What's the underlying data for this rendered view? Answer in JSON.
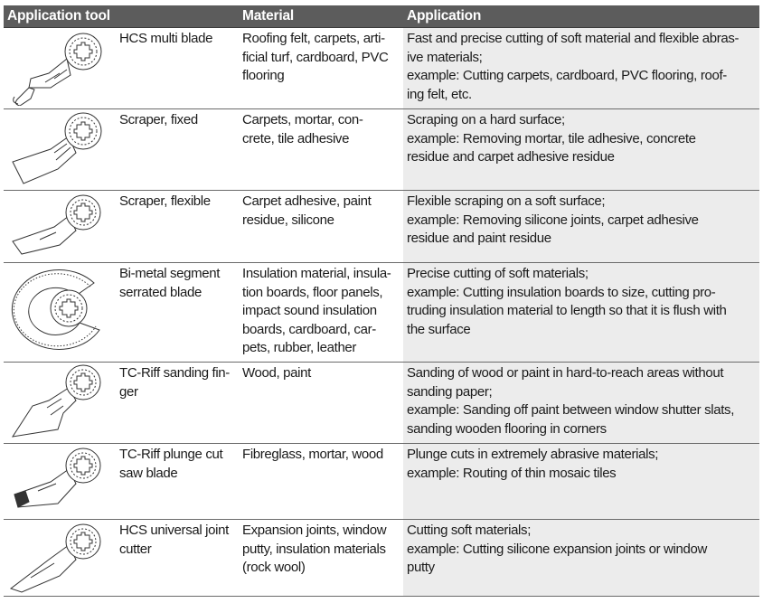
{
  "header": {
    "col_tool": "Application tool",
    "col_material": "Material",
    "col_application": "Application"
  },
  "rows": [
    {
      "tool_lines": [
        "HCS multi blade"
      ],
      "tool_icon": "hcs-multi-blade-icon",
      "material_lines": [
        "Roofing felt, carpets, arti-",
        "ficial turf, cardboard, PVC",
        "flooring"
      ],
      "application_lines": [
        "Fast and precise cutting of soft material and flexible abras-",
        "ive materials;",
        "example: Cutting carpets, cardboard, PVC flooring, roof-",
        "ing felt, etc."
      ]
    },
    {
      "tool_lines": [
        "Scraper, fixed"
      ],
      "tool_icon": "scraper-fixed-icon",
      "material_lines": [
        "Carpets, mortar, con-",
        "crete, tile adhesive"
      ],
      "application_lines": [
        "Scraping on a hard surface;",
        "example: Removing mortar, tile adhesive, concrete",
        "residue and carpet adhesive residue"
      ]
    },
    {
      "tool_lines": [
        "Scraper, flexible"
      ],
      "tool_icon": "scraper-flexible-icon",
      "material_lines": [
        "Carpet adhesive, paint",
        "residue, silicone"
      ],
      "application_lines": [
        "Flexible scraping on a soft surface;",
        "example: Removing silicone joints, carpet adhesive",
        "residue and paint residue"
      ]
    },
    {
      "tool_lines": [
        "Bi-metal segment",
        "serrated blade"
      ],
      "tool_icon": "segment-blade-icon",
      "material_lines": [
        "Insulation material, insula-",
        "tion boards, floor panels,",
        "impact sound insulation",
        "boards, cardboard, car-",
        "pets, rubber, leather"
      ],
      "application_lines": [
        "Precise cutting of soft materials;",
        "example: Cutting insulation boards to size, cutting pro-",
        "truding insulation material to length so that it is flush with",
        "the surface"
      ]
    },
    {
      "tool_lines": [
        "TC-Riff sanding fin-",
        "ger"
      ],
      "tool_icon": "sanding-finger-icon",
      "material_lines": [
        "Wood, paint"
      ],
      "application_lines": [
        "Sanding of wood or paint in hard-to-reach areas without",
        "sanding paper;",
        "example: Sanding off paint between window shutter slats,",
        "sanding wooden flooring in corners"
      ]
    },
    {
      "tool_lines": [
        "TC-Riff plunge cut",
        "saw blade"
      ],
      "tool_icon": "plunge-cut-blade-icon",
      "material_lines": [
        "Fibreglass, mortar, wood"
      ],
      "application_lines": [
        "Plunge cuts in extremely abrasive materials;",
        "example: Routing of thin mosaic tiles"
      ]
    },
    {
      "tool_lines": [
        "HCS universal joint",
        "cutter"
      ],
      "tool_icon": "joint-cutter-icon",
      "material_lines": [
        "Expansion joints, window",
        "putty, insulation materials",
        "(rock wool)"
      ],
      "application_lines": [
        "Cutting soft materials;",
        "example: Cutting silicone expansion joints or window",
        "putty"
      ]
    }
  ]
}
